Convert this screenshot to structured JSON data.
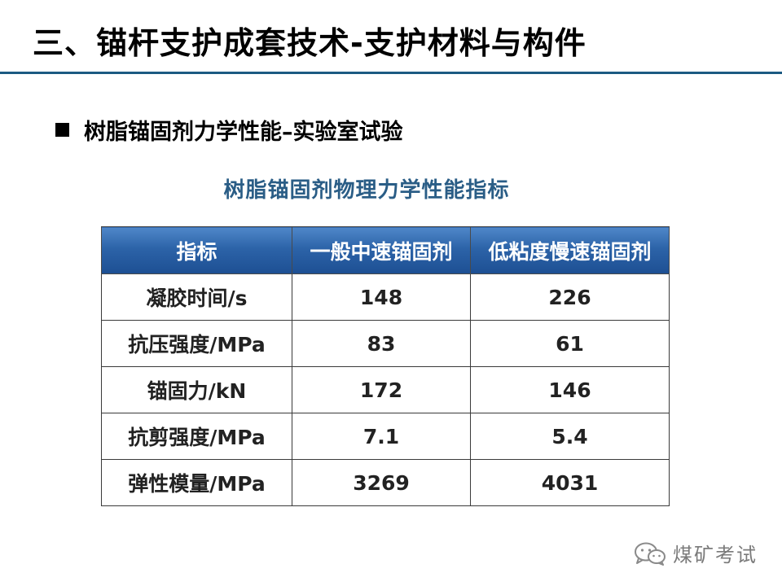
{
  "slide": {
    "title": "三、锚杆支护成套技术-支护材料与构件",
    "bullet": "树脂锚固剂力学性能–实验室试验"
  },
  "table": {
    "caption": "树脂锚固剂物理力学性能指标",
    "headers": [
      "指标",
      "一般中速锚固剂",
      "低粘度慢速锚固剂"
    ],
    "rows": [
      [
        "凝胶时间/s",
        "148",
        "226"
      ],
      [
        "抗压强度/MPa",
        "83",
        "61"
      ],
      [
        "锚固力/kN",
        "172",
        "146"
      ],
      [
        "抗剪强度/MPa",
        "7.1",
        "5.4"
      ],
      [
        "弹性模量/MPa",
        "3269",
        "4031"
      ]
    ]
  },
  "watermark": {
    "icon": "wechat-icon",
    "text": "煤矿考试"
  },
  "colors": {
    "title_rule": "#1b5a82",
    "caption": "#2a5d86",
    "header_bg": "#2c63a8"
  }
}
